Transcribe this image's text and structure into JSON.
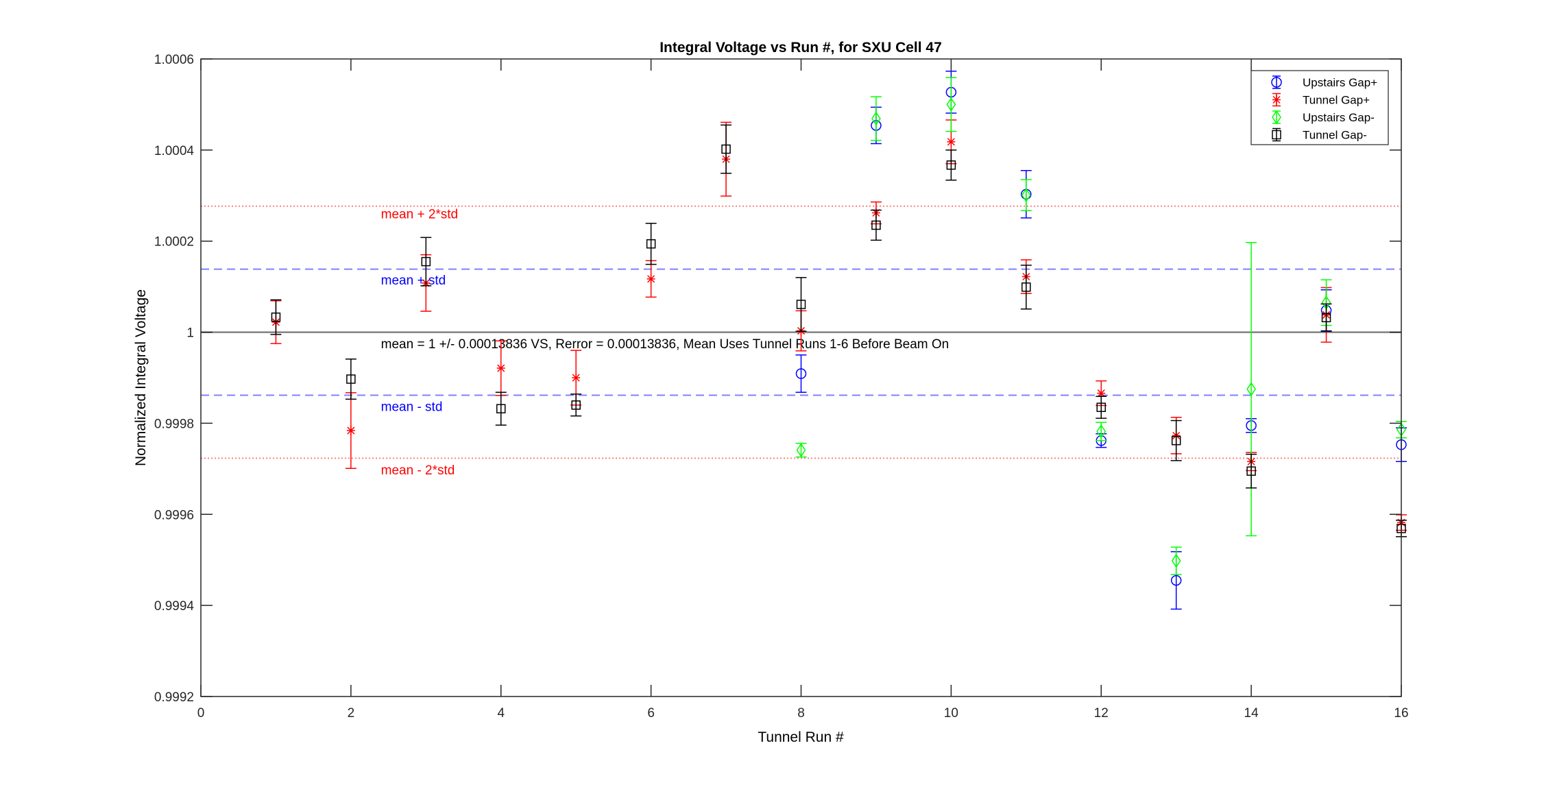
{
  "chart_data": {
    "type": "scatter",
    "title": "Integral Voltage vs Run #, for SXU Cell 47",
    "xlabel": "Tunnel Run #",
    "ylabel": "Normalized Integral Voltage",
    "xlim": [
      0,
      16
    ],
    "ylim": [
      0.9992,
      1.0006
    ],
    "xticks": [
      0,
      2,
      4,
      6,
      8,
      10,
      12,
      14,
      16
    ],
    "xtick_labels": [
      "0",
      "2",
      "4",
      "6",
      "8",
      "10",
      "12",
      "14",
      "16"
    ],
    "yticks": [
      0.9992,
      0.9994,
      0.9996,
      0.9998,
      1.0,
      1.0002,
      1.0004,
      1.0006
    ],
    "ytick_labels": [
      "0.9992",
      "0.9994",
      "0.9996",
      "0.9998",
      "1",
      "1.0002",
      "1.0004",
      "1.0006"
    ],
    "grid": false,
    "legend_position": "top-right",
    "series": [
      {
        "name": "Upstairs Gap+",
        "color": "#0000ff",
        "marker": "circle",
        "x": [
          8,
          9,
          10,
          11,
          12,
          13,
          14,
          15,
          16
        ],
        "y": [
          0.999909,
          1.000454,
          1.000527,
          1.000303,
          0.999762,
          0.999455,
          0.999795,
          1.000048,
          0.999753
        ],
        "err": [
          4.1e-05,
          4e-05,
          4.6e-05,
          5.2e-05,
          1.5e-05,
          6.3e-05,
          1.5e-05,
          4.5e-05,
          3.7e-05
        ]
      },
      {
        "name": "Tunnel Gap+",
        "color": "#ff0000",
        "marker": "star",
        "x": [
          1,
          2,
          3,
          4,
          5,
          6,
          7,
          8,
          9,
          10,
          11,
          12,
          13,
          14,
          15,
          16
        ],
        "y": [
          1.000022,
          0.999784,
          1.000108,
          0.999921,
          0.9999,
          1.000117,
          1.00038,
          1.000003,
          1.000262,
          1.000418,
          1.000122,
          0.999866,
          0.999773,
          0.999716,
          1.000038,
          0.999582
        ],
        "err": [
          4.7e-05,
          8.3e-05,
          6.2e-05,
          6e-05,
          6e-05,
          4e-05,
          8.1e-05,
          4.4e-05,
          2.4e-05,
          4.8e-05,
          3.7e-05,
          2.7e-05,
          4e-05,
          2e-05,
          6e-05,
          1.7e-05
        ]
      },
      {
        "name": "Upstairs Gap-",
        "color": "#00ff00",
        "marker": "diamond",
        "x": [
          8,
          9,
          10,
          11,
          12,
          13,
          14,
          15,
          16
        ],
        "y": [
          0.999741,
          1.000469,
          1.0005,
          1.000301,
          0.999782,
          0.999498,
          0.999875,
          1.000065,
          0.999786
        ],
        "err": [
          1.5e-05,
          4.8e-05,
          5.9e-05,
          3.4e-05,
          2e-05,
          3e-05,
          0.000322,
          5e-05,
          1.8e-05
        ]
      },
      {
        "name": "Tunnel Gap-",
        "color": "#000000",
        "marker": "square",
        "x": [
          1,
          2,
          3,
          4,
          5,
          6,
          7,
          8,
          9,
          10,
          11,
          12,
          13,
          14,
          15,
          16
        ],
        "y": [
          1.000033,
          0.999897,
          1.000155,
          0.999832,
          0.99984,
          1.000194,
          1.000402,
          1.000061,
          1.000235,
          1.000367,
          1.000099,
          0.999835,
          0.999762,
          0.999695,
          1.000032,
          0.999569
        ],
        "err": [
          3.8e-05,
          4.4e-05,
          5.3e-05,
          3.6e-05,
          2.4e-05,
          4.5e-05,
          5.3e-05,
          5.9e-05,
          3.3e-05,
          3.3e-05,
          4.8e-05,
          2.4e-05,
          4.4e-05,
          3.7e-05,
          3e-05,
          1.8e-05
        ]
      }
    ],
    "reference_lines": [
      {
        "name": "mean",
        "y": 1.0,
        "color": "#808080",
        "style": "solid"
      },
      {
        "name": "mean + std",
        "y": 1.00013836,
        "color": "#8080ff",
        "style": "dashed"
      },
      {
        "name": "mean - std",
        "y": 0.99986164,
        "color": "#8080ff",
        "style": "dashed"
      },
      {
        "name": "mean + 2*std",
        "y": 1.00027672,
        "color": "#ff8080",
        "style": "dotted"
      },
      {
        "name": "mean - 2*std",
        "y": 0.99972328,
        "color": "#ff8080",
        "style": "dotted"
      }
    ],
    "annotations": [
      {
        "text": "mean + 2*std",
        "x": 2.4,
        "y": 1.00025,
        "color": "#ff0000"
      },
      {
        "text": "mean + std",
        "x": 2.4,
        "y": 1.000105,
        "color": "#0000ff"
      },
      {
        "text": "mean = 1 +/- 0.00013836 VS, Rerror = 0.00013836, Mean Uses Tunnel Runs 1-6 Before Beam On",
        "x": 2.4,
        "y": 0.999965,
        "color": "#000000"
      },
      {
        "text": "mean - std",
        "x": 2.4,
        "y": 0.999827,
        "color": "#0000ff"
      },
      {
        "text": "mean - 2*std",
        "x": 2.4,
        "y": 0.999688,
        "color": "#ff0000"
      }
    ]
  }
}
